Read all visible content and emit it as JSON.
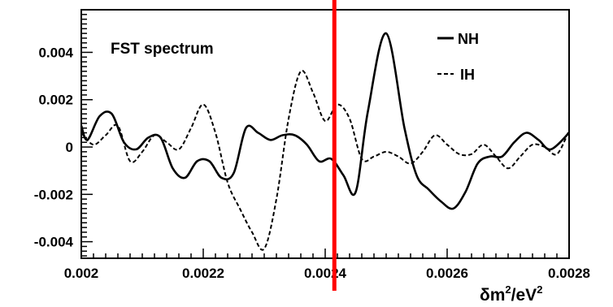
{
  "chart_data": {
    "type": "line",
    "title": "FST spectrum",
    "xlabel": "δm²/eV²",
    "xlabel_parts": {
      "main": "δm",
      "sup1": "2",
      "mid": "/eV",
      "sup2": "2"
    },
    "ylabel": "",
    "xlim": [
      0.002,
      0.0028
    ],
    "ylim": [
      -0.0047,
      0.0058
    ],
    "xticks": [
      0.002,
      0.0022,
      0.0024,
      0.0026,
      0.0028
    ],
    "xtick_labels": [
      "0.002",
      "0.0022",
      "0.0024",
      "0.0026",
      "0.0028"
    ],
    "yticks": [
      -0.004,
      -0.002,
      0,
      0.002,
      0.004
    ],
    "ytick_labels": [
      "-0.004",
      "-0.002",
      "0",
      "0.002",
      "0.004"
    ],
    "legend_position": "top-right",
    "marker_line": {
      "x": 0.002415,
      "color": "#ff0000"
    },
    "series": [
      {
        "name": "NH",
        "style": "solid",
        "color": "#000000",
        "x": [
          0.002,
          0.00201,
          0.00203,
          0.00205,
          0.00207,
          0.00209,
          0.00211,
          0.00213,
          0.00215,
          0.00217,
          0.00219,
          0.00221,
          0.00223,
          0.00225,
          0.00227,
          0.00229,
          0.00231,
          0.00233,
          0.00235,
          0.00237,
          0.00239,
          0.00241,
          0.00243,
          0.00245,
          0.00247,
          0.0025,
          0.00253,
          0.00255,
          0.00257,
          0.00259,
          0.00261,
          0.00263,
          0.00265,
          0.00267,
          0.00269,
          0.00271,
          0.00273,
          0.00275,
          0.00277,
          0.0028
        ],
        "values": [
          0.0009,
          0.0003,
          0.0013,
          0.0014,
          0.0002,
          -0.0001,
          0.0004,
          0.0004,
          -0.0009,
          -0.0013,
          -0.0006,
          -0.0006,
          -0.0013,
          -0.0011,
          0.0008,
          0.0006,
          0.0003,
          0.0005,
          0.0005,
          0.0001,
          -0.0006,
          -0.0005,
          -0.0012,
          -0.0019,
          0.0015,
          0.0048,
          0.0008,
          -0.0012,
          -0.0018,
          -0.0023,
          -0.0026,
          -0.0019,
          -0.0007,
          -0.0004,
          -0.0004,
          0.0002,
          0.0006,
          0.0003,
          -0.0001,
          0.0006
        ]
      },
      {
        "name": "IH",
        "style": "dashed",
        "color": "#000000",
        "x": [
          0.002,
          0.00202,
          0.00204,
          0.00206,
          0.00208,
          0.0021,
          0.00212,
          0.00214,
          0.00216,
          0.00218,
          0.0022,
          0.00222,
          0.00224,
          0.00226,
          0.00228,
          0.0023,
          0.00232,
          0.00234,
          0.00236,
          0.00238,
          0.0024,
          0.00242,
          0.00244,
          0.00246,
          0.00248,
          0.0025,
          0.00252,
          0.00254,
          0.00256,
          0.00258,
          0.0026,
          0.00262,
          0.00264,
          0.00266,
          0.00268,
          0.0027,
          0.00272,
          0.00274,
          0.00276,
          0.00278,
          0.0028
        ],
        "values": [
          0.0006,
          0.0001,
          0.0005,
          0.0009,
          -0.0006,
          -0.0002,
          0.0005,
          0.0002,
          -0.0001,
          0.0008,
          0.0018,
          0.0006,
          -0.0015,
          -0.0026,
          -0.0036,
          -0.0043,
          -0.0022,
          0.0012,
          0.0032,
          0.0023,
          0.0011,
          0.0018,
          0.0012,
          -0.0005,
          -0.0004,
          -0.0002,
          -0.0004,
          -0.0007,
          -0.0002,
          0.0005,
          0.0001,
          -0.0003,
          -0.0003,
          0.0001,
          -0.0004,
          -0.0009,
          -0.0004,
          0.0001,
          0.0,
          -0.0003,
          0.0007
        ]
      }
    ]
  }
}
